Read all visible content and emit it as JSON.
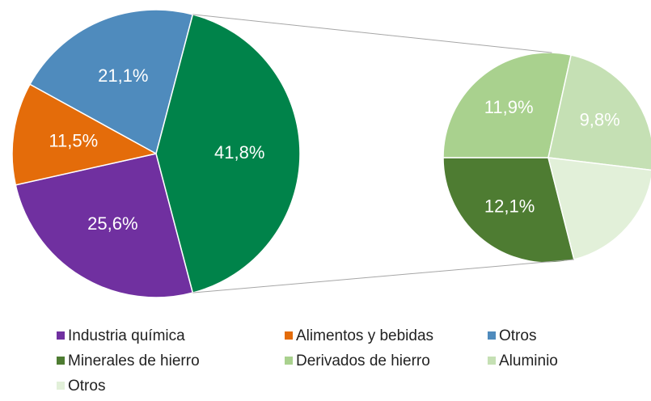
{
  "chart_data": {
    "type": "pie-of-pie",
    "categories": [
      "Industria química",
      "Alimentos y bebidas",
      "Otros",
      null
    ],
    "values": [
      25.6,
      11.5,
      21.1,
      41.8
    ],
    "value_labels": [
      "25,6%",
      "11,5%",
      "21,1%",
      "41,8%"
    ],
    "colors": [
      "#7030a0",
      "#e46c0a",
      "#4f8bbd",
      "#00834a"
    ],
    "secondary": {
      "categories": [
        "Minerales de hierro",
        "Derivados de hierro",
        "Aluminio",
        "Otros"
      ],
      "values": [
        12.1,
        11.9,
        9.8,
        8.0
      ],
      "value_labels": [
        "12,1%",
        "11,9%",
        "9,8%",
        null
      ],
      "colors": [
        "#4e7c32",
        "#a9d18e",
        "#c5e0b4",
        "#e2f0d9"
      ]
    }
  }
}
